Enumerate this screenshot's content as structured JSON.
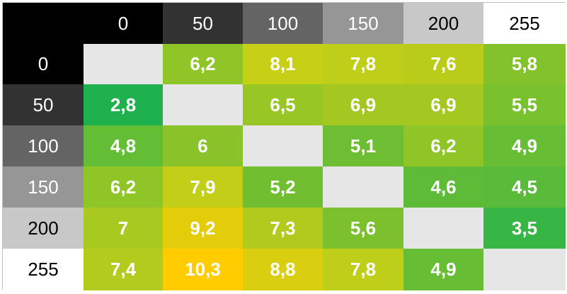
{
  "chart_data": {
    "type": "heatmap",
    "title": "",
    "xlabel": "",
    "ylabel": "",
    "x_categories": [
      "0",
      "50",
      "100",
      "150",
      "200",
      "255"
    ],
    "y_categories": [
      "0",
      "50",
      "100",
      "150",
      "200",
      "255"
    ],
    "header_colors": [
      "#000000",
      "#323232",
      "#646464",
      "#969696",
      "#c8c8c8",
      "#ffffff"
    ],
    "header_text_colors": [
      "#ffffff",
      "#ffffff",
      "#ffffff",
      "#ffffff",
      "#000000",
      "#000000"
    ],
    "values": [
      [
        null,
        "6,2",
        "8,1",
        "7,8",
        "7,6",
        "5,8"
      ],
      [
        "2,8",
        null,
        "6,5",
        "6,9",
        "6,9",
        "5,5"
      ],
      [
        "4,8",
        "6",
        null,
        "5,1",
        "6,2",
        "4,9"
      ],
      [
        "6,2",
        "7,9",
        "5,2",
        null,
        "4,6",
        "4,5"
      ],
      [
        "7",
        "9,2",
        "7,3",
        "5,6",
        null,
        "3,5"
      ],
      [
        "7,4",
        "10,3",
        "8,8",
        "7,8",
        "4,9",
        null
      ]
    ],
    "empty_cell_color": "#e6e6e6",
    "color_scale": {
      "min": 2.8,
      "max": 10.3,
      "stops": [
        {
          "t": 0.0,
          "color": "#1fb14d"
        },
        {
          "t": 0.3,
          "color": "#6cbe32"
        },
        {
          "t": 0.7,
          "color": "#c6cf16"
        },
        {
          "t": 1.0,
          "color": "#ffcc00"
        }
      ]
    }
  }
}
